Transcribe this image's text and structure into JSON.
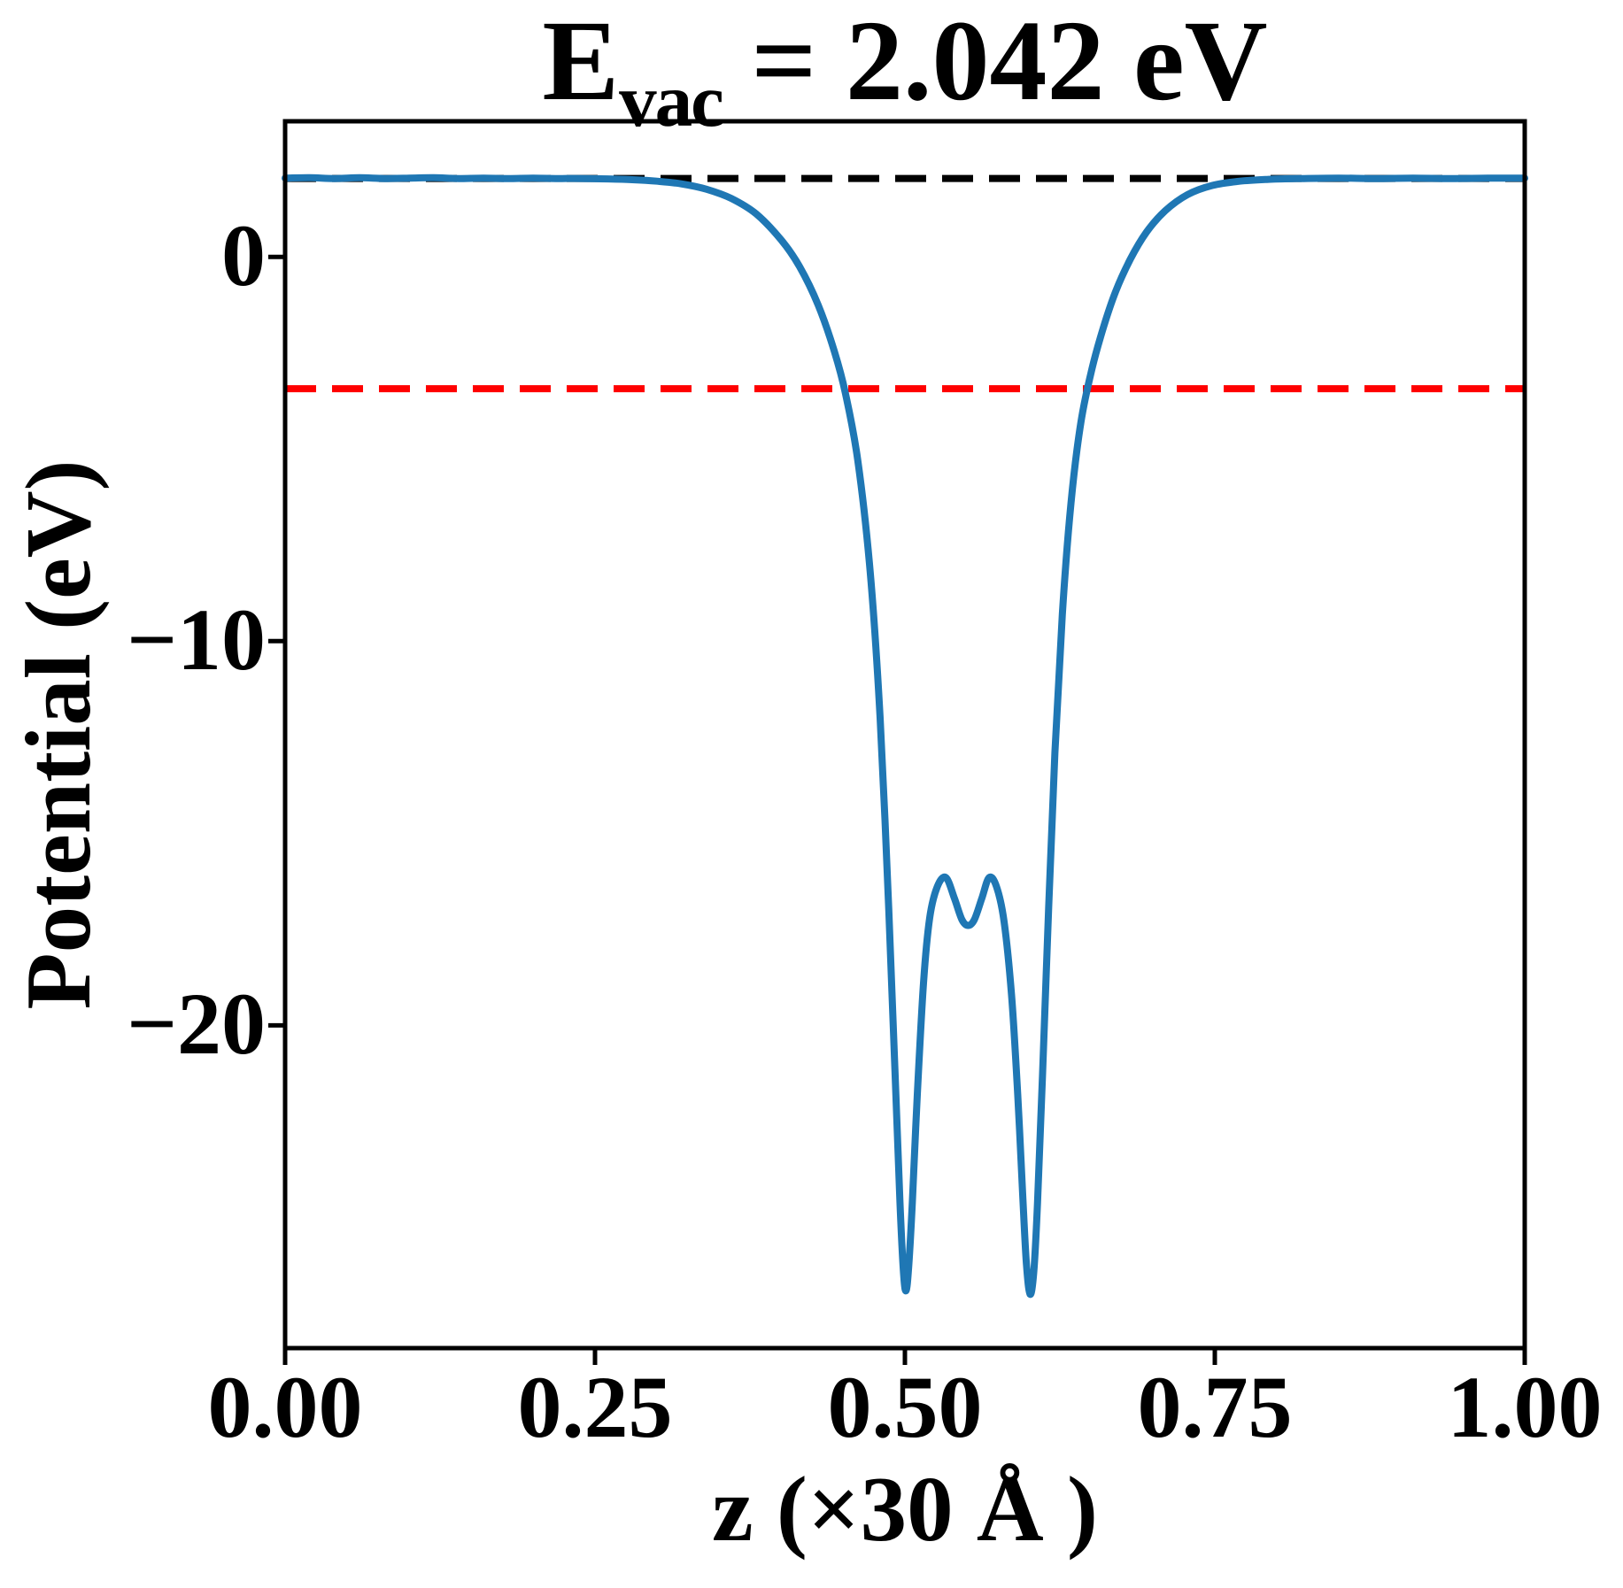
{
  "figure": {
    "title": {
      "prefix": "E",
      "subscript": "vac",
      "rest": " = 2.042 eV"
    },
    "background": "#ffffff"
  },
  "chart_data": {
    "type": "line",
    "title": "E_vac = 2.042 eV",
    "xlabel": "z (×30 Å )",
    "ylabel": "Potential (eV)",
    "xlim": [
      0.0,
      1.0
    ],
    "ylim": [
      -28.4,
      3.53
    ],
    "grid": false,
    "legend": null,
    "xticks": {
      "values": [
        0.0,
        0.25,
        0.5,
        0.75,
        1.0
      ],
      "labels": [
        "0.00",
        "0.25",
        "0.50",
        "0.75",
        "1.00"
      ]
    },
    "yticks": {
      "values": [
        0,
        -10,
        -20
      ],
      "labels": [
        "0",
        "−10",
        "−20"
      ]
    },
    "axis_color": "#000000",
    "series": [
      {
        "name": "vacuum-level",
        "type": "hline",
        "y": 2.042,
        "color": "#000000",
        "style": "dashed",
        "linewidth": 8
      },
      {
        "name": "reference-level",
        "type": "hline",
        "y": -3.43,
        "color": "#ff0000",
        "style": "dashed",
        "linewidth": 8
      },
      {
        "name": "planar-averaged-potential",
        "type": "line",
        "color": "#1f77b4",
        "style": "solid",
        "linewidth": 8,
        "points": [
          [
            0.0,
            2.05
          ],
          [
            0.02,
            2.06
          ],
          [
            0.04,
            2.04
          ],
          [
            0.06,
            2.06
          ],
          [
            0.08,
            2.04
          ],
          [
            0.1,
            2.05
          ],
          [
            0.12,
            2.06
          ],
          [
            0.14,
            2.04
          ],
          [
            0.16,
            2.05
          ],
          [
            0.18,
            2.04
          ],
          [
            0.2,
            2.05
          ],
          [
            0.22,
            2.04
          ],
          [
            0.24,
            2.04
          ],
          [
            0.26,
            2.03
          ],
          [
            0.28,
            2.01
          ],
          [
            0.3,
            1.97
          ],
          [
            0.32,
            1.9
          ],
          [
            0.34,
            1.76
          ],
          [
            0.36,
            1.52
          ],
          [
            0.38,
            1.12
          ],
          [
            0.4,
            0.45
          ],
          [
            0.415,
            -0.25
          ],
          [
            0.43,
            -1.25
          ],
          [
            0.443,
            -2.45
          ],
          [
            0.452,
            -3.55
          ],
          [
            0.462,
            -5.3
          ],
          [
            0.472,
            -8.2
          ],
          [
            0.48,
            -12.0
          ],
          [
            0.487,
            -17.0
          ],
          [
            0.492,
            -21.2
          ],
          [
            0.496,
            -24.6
          ],
          [
            0.499,
            -26.5
          ],
          [
            0.501,
            -26.9
          ],
          [
            0.503,
            -26.3
          ],
          [
            0.506,
            -24.6
          ],
          [
            0.51,
            -21.8
          ],
          [
            0.515,
            -18.9
          ],
          [
            0.52,
            -17.2
          ],
          [
            0.526,
            -16.4
          ],
          [
            0.533,
            -16.15
          ],
          [
            0.54,
            -16.7
          ],
          [
            0.546,
            -17.25
          ],
          [
            0.551,
            -17.4
          ],
          [
            0.556,
            -17.25
          ],
          [
            0.562,
            -16.7
          ],
          [
            0.568,
            -16.15
          ],
          [
            0.574,
            -16.4
          ],
          [
            0.58,
            -17.3
          ],
          [
            0.586,
            -19.2
          ],
          [
            0.591,
            -21.8
          ],
          [
            0.595,
            -24.4
          ],
          [
            0.598,
            -26.2
          ],
          [
            0.601,
            -27.0
          ],
          [
            0.604,
            -26.4
          ],
          [
            0.607,
            -24.6
          ],
          [
            0.611,
            -21.3
          ],
          [
            0.616,
            -16.9
          ],
          [
            0.621,
            -12.9
          ],
          [
            0.627,
            -9.3
          ],
          [
            0.634,
            -6.4
          ],
          [
            0.642,
            -4.3
          ],
          [
            0.651,
            -2.9
          ],
          [
            0.66,
            -1.85
          ],
          [
            0.67,
            -0.9
          ],
          [
            0.682,
            -0.05
          ],
          [
            0.695,
            0.65
          ],
          [
            0.71,
            1.2
          ],
          [
            0.728,
            1.62
          ],
          [
            0.748,
            1.86
          ],
          [
            0.77,
            1.97
          ],
          [
            0.795,
            2.02
          ],
          [
            0.82,
            2.04
          ],
          [
            0.85,
            2.05
          ],
          [
            0.88,
            2.04
          ],
          [
            0.91,
            2.05
          ],
          [
            0.94,
            2.04
          ],
          [
            0.97,
            2.05
          ],
          [
            1.0,
            2.05
          ]
        ]
      }
    ]
  }
}
